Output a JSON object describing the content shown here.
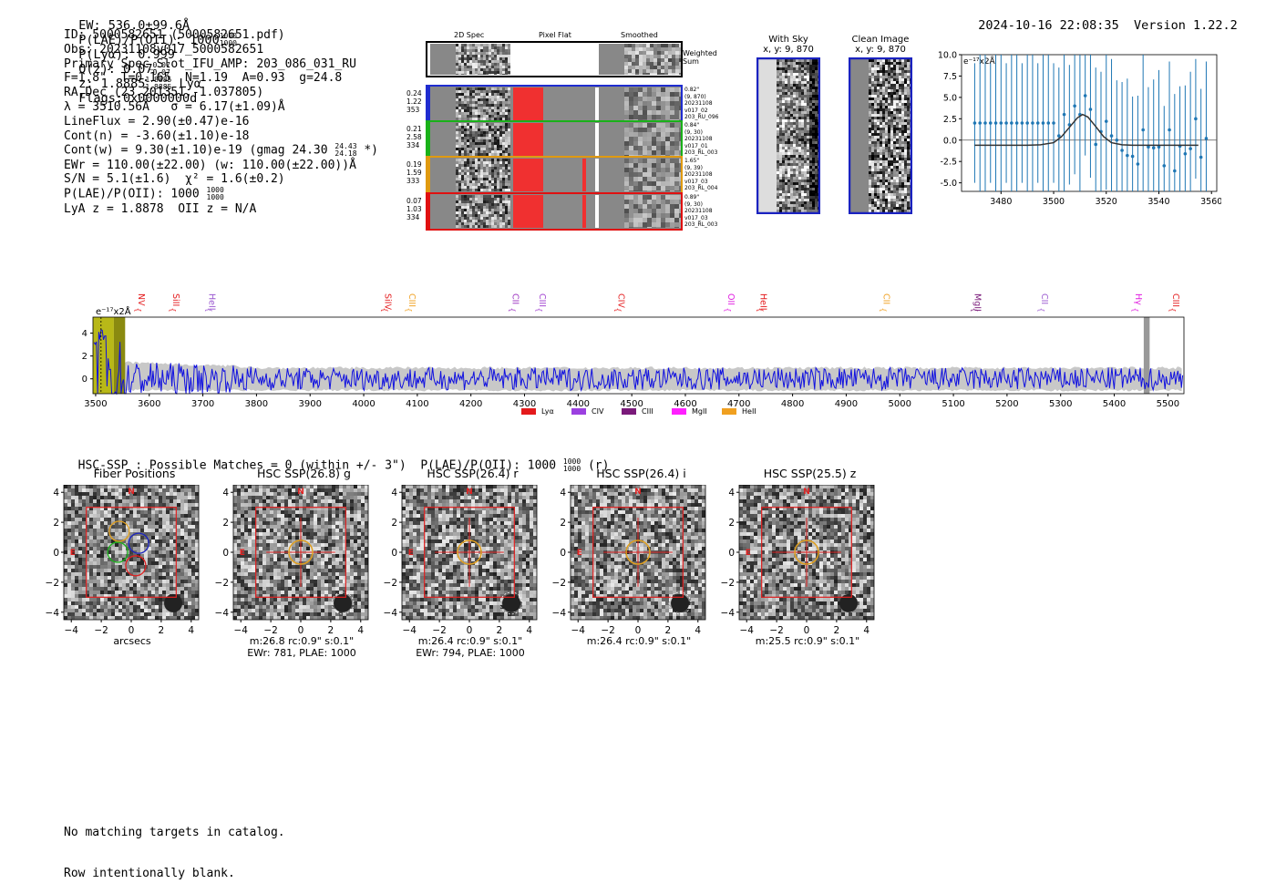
{
  "header": {
    "ew": "EW: 536.0±99.6Å",
    "plae_label": "P(LAE)/P(OII): 1000",
    "plae_hi": "1000",
    "plae_lo": "1000",
    "plya": "P(Lyα): 0.999",
    "qz": "Q(z): 0.07",
    "qz_hi": "0.07",
    "qz_lo": "0.07",
    "z": "z: 1.8885",
    "z_hi": "1.8885",
    "z_lo": "1.8885",
    "line": "Lyα",
    "flags": "Flags:0x0000000d",
    "datetime": "2024-10-16 22:08:35",
    "version": "Version 1.22.2"
  },
  "info": {
    "id": "ID: 5000582651 (5000582651.pdf)",
    "obs": "Obs: 20231108v017_5000582651",
    "primary": "Primary Spec_Slot_IFU_AMP: 203_086_031_RU",
    "params": "F=1.8\"  T=0.165  N=1.19  A=0.93  g=24.8",
    "radec": "RA,Dec (23.201351,-1.037805)",
    "lambda": "λ = 3510.56Å   σ = 6.17(±1.09)Å",
    "lineflux": "LineFlux = 2.90(±0.47)e-16",
    "contn": "Cont(n) = -3.60(±1.10)e-18",
    "contw": "Cont(w) = 9.30(±1.10)e-19 (gmag 24.30",
    "contw_hi": "24.43",
    "contw_lo": "24.18",
    "contw_end": "*)",
    "ewr": "EWr = 110.00(±22.00) (w: 110.00(±22.00))Å",
    "sn": "S/N = 5.1(±1.6)  χ² = 1.6(±0.2)",
    "plae": "P(LAE)/P(OII): 1000",
    "plae_hi": "1000",
    "plae_lo": "1000",
    "lya": "LyA z = 1.8878  OII z = N/A"
  },
  "cutout_panel": {
    "col_headers": [
      "2D Spec",
      "Pixel Flat",
      "Smoothed"
    ],
    "weighted_label": "Weighted Sum",
    "rows": [
      {
        "left": [
          "0.24",
          "1.22",
          "353"
        ],
        "right": [
          "0.82\"",
          "(9, 870)",
          "20231108",
          "v017_02",
          "203_RU_096"
        ],
        "color": "#1f2ccf"
      },
      {
        "left": [
          "0.21",
          "2.58",
          "334"
        ],
        "right": [
          "0.84\"",
          "(9, 30)",
          "20231108",
          "v017_01",
          "203_RL_003"
        ],
        "color": "#19b119"
      },
      {
        "left": [
          "0.19",
          "1.59",
          "333"
        ],
        "right": [
          "1.65\"",
          "(9, 39)",
          "20231108",
          "v017_03",
          "203_RL_004"
        ],
        "color": "#e09a10"
      },
      {
        "left": [
          "0.07",
          "1.03",
          "334"
        ],
        "right": [
          "0.89\"",
          "(9, 30)",
          "20231108",
          "v017_03",
          "203_RL_003"
        ],
        "color": "#e01010"
      }
    ]
  },
  "with_sky": {
    "title": "With Sky",
    "subtitle": "x, y: 9, 870"
  },
  "clean_image": {
    "title": "Clean Image",
    "subtitle": "x, y: 9, 870"
  },
  "line_fit": {
    "ylabel_unit": "e⁻¹⁷x2Å",
    "chart_data": {
      "type": "line",
      "xlim": [
        3465,
        3562
      ],
      "ylim": [
        -6,
        10
      ],
      "xticks": [
        3480,
        3500,
        3520,
        3540,
        3560
      ],
      "yticks": [
        -5.0,
        -2.5,
        0.0,
        2.5,
        5.0,
        7.5,
        10.0
      ],
      "points_x": [
        3470,
        3472,
        3474,
        3476,
        3478,
        3480,
        3482,
        3484,
        3486,
        3488,
        3490,
        3492,
        3494,
        3496,
        3498,
        3500,
        3502,
        3504,
        3506,
        3508,
        3510,
        3512,
        3514,
        3516,
        3518,
        3520,
        3522,
        3524,
        3526,
        3528,
        3530,
        3532,
        3534,
        3536,
        3538,
        3540,
        3542,
        3544,
        3546,
        3548,
        3550,
        3552,
        3554,
        3556,
        3558
      ],
      "points_y": [
        2.0,
        2.0,
        2.0,
        2.0,
        2.0,
        2.0,
        2.0,
        2.0,
        2.0,
        2.0,
        2.0,
        2.0,
        2.0,
        2.0,
        2.0,
        2.0,
        0.5,
        3.0,
        1.8,
        4.0,
        3.0,
        5.2,
        3.6,
        -0.5,
        1.0,
        2.2,
        0.5,
        0.0,
        -1.2,
        -1.8,
        -1.9,
        -2.8,
        1.2,
        -0.8,
        -0.9,
        -0.8,
        -3.0,
        1.2,
        -3.6,
        -0.7,
        -1.6,
        -1.0,
        2.5,
        -2.0,
        0.2
      ],
      "fit_x": [
        3470,
        3480,
        3490,
        3495,
        3500,
        3503,
        3506,
        3509,
        3511,
        3513,
        3516,
        3519,
        3522,
        3526,
        3530,
        3540,
        3555
      ],
      "fit_y": [
        -0.6,
        -0.6,
        -0.6,
        -0.55,
        -0.3,
        0.4,
        1.5,
        2.6,
        3.0,
        2.7,
        1.6,
        0.4,
        -0.3,
        -0.55,
        -0.6,
        -0.6,
        -0.6
      ]
    }
  },
  "spectrum": {
    "unit_label": "e⁻¹⁷x2Å",
    "chart_data": {
      "type": "line",
      "xlim": [
        3495,
        5530
      ],
      "ylim": [
        -1.3,
        5.4
      ],
      "xticks": [
        3500,
        3600,
        3700,
        3800,
        3900,
        4000,
        4100,
        4200,
        4300,
        4400,
        4500,
        4600,
        4700,
        4800,
        4900,
        5000,
        5100,
        5200,
        5300,
        5400,
        5500
      ],
      "yticks": [
        0,
        2,
        4
      ],
      "line_markers": [
        {
          "name": "NV",
          "x": 3580,
          "color": "#e41a1c"
        },
        {
          "name": "SiII",
          "x": 3645,
          "color": "#e41a1c"
        },
        {
          "name": "HeII",
          "x": 3712,
          "color": "#9b59d0"
        },
        {
          "name": "SiIV",
          "x": 4040,
          "color": "#e41a1c"
        },
        {
          "name": "CIII",
          "x": 4085,
          "color": "#f0a020"
        },
        {
          "name": "CII",
          "x": 4278,
          "color": "#9b30c0"
        },
        {
          "name": "CIII",
          "x": 4328,
          "color": "#a040d0"
        },
        {
          "name": "CIV",
          "x": 4475,
          "color": "#e41a1c"
        },
        {
          "name": "OII",
          "x": 4680,
          "color": "#e020e0"
        },
        {
          "name": "HeII",
          "x": 4740,
          "color": "#e41a1c"
        },
        {
          "name": "CII",
          "x": 4970,
          "color": "#f0a020"
        },
        {
          "name": "MgII",
          "x": 5140,
          "color": "#7a1a7a"
        },
        {
          "name": "CII",
          "x": 5265,
          "color": "#9b59d0"
        },
        {
          "name": "Hγ",
          "x": 5440,
          "color": "#e020e0"
        },
        {
          "name": "CIII",
          "x": 5510,
          "color": "#e41a1c"
        }
      ],
      "legend": [
        {
          "name": "Lyα",
          "color": "#e41a1c"
        },
        {
          "name": "CIV",
          "color": "#9b40e0"
        },
        {
          "name": "CIII",
          "color": "#7a1a7a"
        },
        {
          "name": "MgII",
          "color": "#ff20ff"
        },
        {
          "name": "HeII",
          "color": "#f0a020"
        }
      ]
    }
  },
  "hsc": {
    "summary": "HSC-SSP : Possible Matches = 0 (within +/- 3\")  P(LAE)/P(OII): 1000",
    "summary_hi": "1000",
    "summary_lo": "1000",
    "summary_end": "(r)",
    "panels": [
      {
        "title": "Fiber Positions",
        "caption1": "arcsecs",
        "caption2": ""
      },
      {
        "title": "HSC SSP(26.8) g",
        "caption1": "m:26.8 rc:0.9\"  s:0.1\"",
        "caption2": "EWr: 781, PLAE: 1000"
      },
      {
        "title": "HSC SSP(26.4) r",
        "caption1": "m:26.4 rc:0.9\"  s:0.1\"",
        "caption2": "EWr: 794, PLAE: 1000"
      },
      {
        "title": "HSC SSP(26.4) i",
        "caption1": "m:26.4 rc:0.9\"  s:0.1\"",
        "caption2": ""
      },
      {
        "title": "HSC SSP(25.5) z",
        "caption1": "m:25.5 rc:0.9\"  s:0.1\"",
        "caption2": ""
      }
    ],
    "axis_ticks": [
      "−4",
      "−2",
      "0",
      "2",
      "4"
    ],
    "north": "N",
    "east": "E"
  },
  "footer": {
    "line1": "No matching targets in catalog.",
    "line2": "Row intentionally blank."
  }
}
